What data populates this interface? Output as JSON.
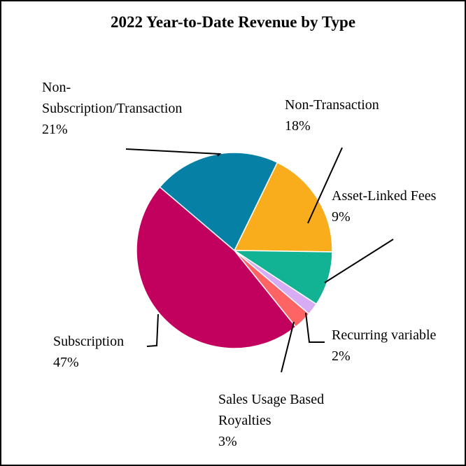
{
  "chart_data": {
    "type": "pie",
    "title": "2022 Year-to-Date Revenue by Type",
    "slices": [
      {
        "name": "Non-Transaction",
        "value": 18,
        "pct_label": "18%",
        "color": "#F9AD1D"
      },
      {
        "name": "Asset-Linked Fees",
        "value": 9,
        "pct_label": "9%",
        "color": "#12B295"
      },
      {
        "name": "Recurring variable",
        "value": 2,
        "pct_label": "2%",
        "color": "#D8ACF5"
      },
      {
        "name": "Sales Usage Based Royalties",
        "value": 3,
        "pct_label": "3%",
        "color": "#FF6464"
      },
      {
        "name": "Subscription",
        "value": 47,
        "pct_label": "47%",
        "color": "#C2005E"
      },
      {
        "name": "Non-Subscription/Transaction",
        "value": 21,
        "pct_label": "21%",
        "color": "#0780A6"
      }
    ],
    "labels": {
      "non_subscription": {
        "line1": "Non-",
        "line2": "Subscription/Transaction",
        "pct": "21%"
      },
      "non_transaction": {
        "line1": "Non-Transaction",
        "pct": "18%"
      },
      "asset_linked": {
        "line1": "Asset-Linked Fees",
        "pct": "9%"
      },
      "recurring": {
        "line1": "Recurring variable",
        "pct": "2%"
      },
      "sales_usage": {
        "line1": "Sales Usage Based",
        "line2": "Royalties",
        "pct": "3%"
      },
      "subscription": {
        "line1": "Subscription",
        "pct": "47%"
      }
    }
  }
}
